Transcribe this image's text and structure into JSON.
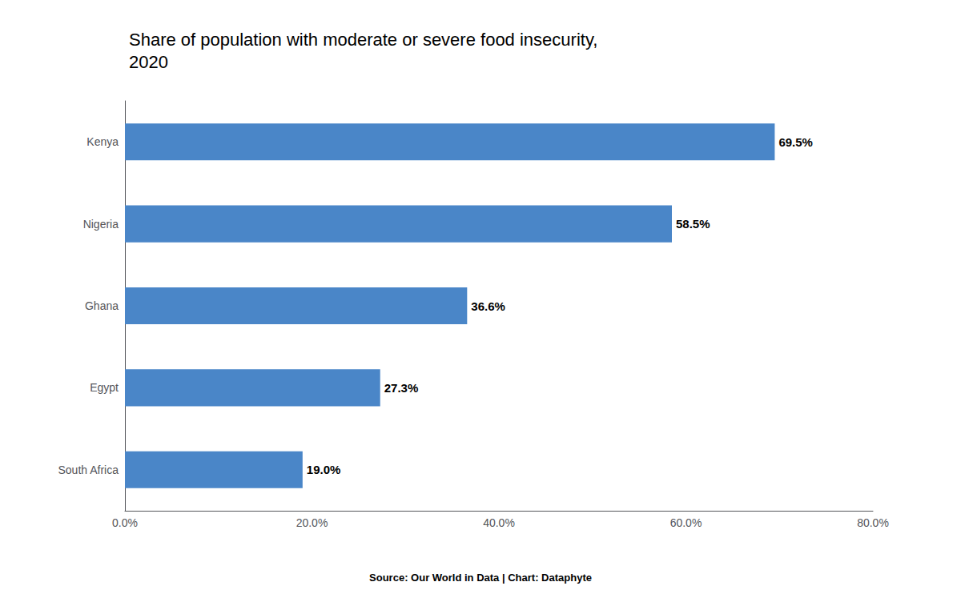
{
  "chart_data": {
    "type": "bar",
    "orientation": "horizontal",
    "title": "Share of population with moderate or severe food insecurity,\n2020",
    "categories": [
      "South Africa",
      "Egypt",
      "Ghana",
      "Nigeria",
      "Kenya"
    ],
    "values": [
      19.0,
      27.3,
      36.6,
      58.5,
      69.5
    ],
    "value_labels": [
      "19.0%",
      "27.3%",
      "36.6%",
      "58.5%",
      "69.5%"
    ],
    "data_labels": true,
    "color": "#4a86c8",
    "xlim": [
      0,
      80
    ],
    "xticks": [
      {
        "value": 0,
        "label": "0.0%"
      },
      {
        "value": 20,
        "label": "20.0%"
      },
      {
        "value": 40,
        "label": "40.0%"
      },
      {
        "value": 60,
        "label": "60.0%"
      },
      {
        "value": 80,
        "label": "80.0%"
      }
    ],
    "grid": false,
    "annotations": [
      "Source: Our World in Data | Chart: Dataphyte"
    ]
  }
}
